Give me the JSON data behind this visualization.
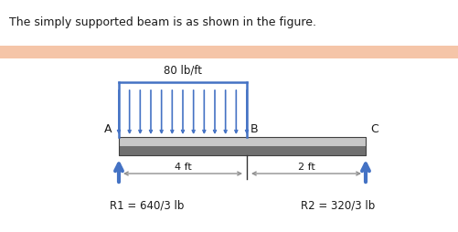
{
  "title": "The simply supported beam is as shown in the figure.",
  "title_fontsize": 9.0,
  "load_label": "80 lb/ft",
  "dim_label_4ft": "4 ft",
  "dim_label_2ft": "2 ft",
  "r1_label": "R1 = 640/3 lb",
  "r2_label": "R2 = 320/3 lb",
  "point_A": "A",
  "point_B": "B",
  "point_C": "C",
  "beam_color_top": "#b0b0b0",
  "beam_color_bot": "#606060",
  "beam_edge_color": "#404040",
  "arrow_color": "#4472C4",
  "dim_line_color": "#909090",
  "text_color": "#1a1a1a",
  "banner_color": "#F5C5A8",
  "background_color": "#ffffff",
  "n_load_arrows": 13
}
